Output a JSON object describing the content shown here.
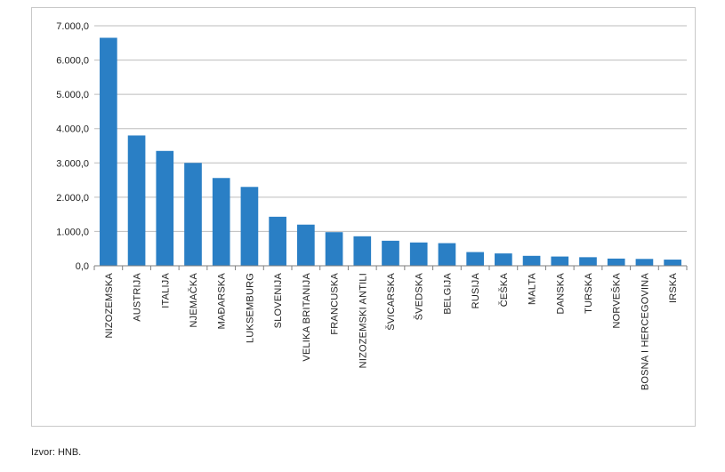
{
  "chart_data": {
    "type": "bar",
    "title": "",
    "xlabel": "",
    "ylabel": "",
    "ylim": [
      0,
      7000
    ],
    "yticks": [
      0,
      1000,
      2000,
      3000,
      4000,
      5000,
      6000,
      7000
    ],
    "ytick_labels": [
      "0,0",
      "1.000,0",
      "2.000,0",
      "3.000,0",
      "4.000,0",
      "5.000,0",
      "6.000,0",
      "7.000,0"
    ],
    "grid": true,
    "legend": "none",
    "bar_color": "#2a7fc5",
    "categories": [
      "NIZOZEMSKA",
      "AUSTRIJA",
      "ITALIJA",
      "NJEMAČKA",
      "MAĐARSKA",
      "LUKSEMBURG",
      "SLOVENIJA",
      "VELIKA BRITANIJA",
      "FRANCUSKA",
      "NIZOZEMSKI ANTILI",
      "ŠVICARSKA",
      "ŠVEDSKA",
      "BELGIJA",
      "RUSIJA",
      "ČEŠKA",
      "MALTA",
      "DANSKA",
      "TURSKA",
      "NORVEŠKA",
      "BOSNA I HERCEGOVINA",
      "IRSKA"
    ],
    "values": [
      6650,
      3800,
      3350,
      3000,
      2560,
      2300,
      1430,
      1200,
      980,
      860,
      730,
      680,
      660,
      400,
      360,
      290,
      270,
      250,
      210,
      200,
      180
    ]
  },
  "source_note": "Izvor: HNB."
}
